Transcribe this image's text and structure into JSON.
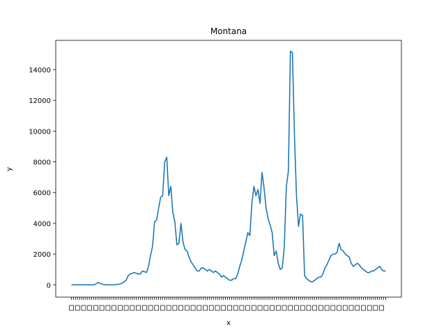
{
  "chart_data": {
    "type": "line",
    "title": "Montana",
    "xlabel": "x",
    "ylabel": "y",
    "grid": false,
    "ylim": [
      -800,
      15900
    ],
    "yticks": [
      0,
      2000,
      4000,
      6000,
      8000,
      10000,
      12000,
      14000
    ],
    "ytick_labels": [
      "0",
      "2000",
      "4000",
      "6000",
      "8000",
      "10000",
      "12000",
      "14000"
    ],
    "x_tick_labels_legible": false,
    "series": [
      {
        "color": "#1f77b4",
        "values": [
          0,
          0,
          0,
          0,
          0,
          0,
          0,
          0,
          0,
          0,
          0,
          0,
          50,
          150,
          100,
          50,
          20,
          0,
          0,
          0,
          0,
          0,
          20,
          30,
          60,
          100,
          200,
          300,
          600,
          700,
          750,
          800,
          750,
          700,
          700,
          900,
          850,
          800,
          1200,
          1900,
          2500,
          4100,
          4200,
          5000,
          5700,
          5800,
          8000,
          8300,
          5800,
          6400,
          4700,
          4100,
          2600,
          2700,
          4000,
          2800,
          2300,
          2200,
          1800,
          1500,
          1300,
          1100,
          900,
          900,
          1100,
          1100,
          1000,
          900,
          1000,
          900,
          800,
          900,
          800,
          700,
          500,
          600,
          500,
          400,
          300,
          300,
          400,
          400,
          700,
          1200,
          1600,
          2200,
          2800,
          3400,
          3200,
          5300,
          6400,
          5800,
          6200,
          5300,
          7300,
          6300,
          5000,
          4300,
          3900,
          3400,
          1900,
          2200,
          1400,
          1000,
          1100,
          2500,
          6400,
          7400,
          15200,
          15100,
          9700,
          5800,
          3800,
          4600,
          4500,
          600,
          400,
          300,
          200,
          200,
          300,
          400,
          500,
          500,
          700,
          1100,
          1300,
          1600,
          1900,
          2000,
          2000,
          2100,
          2700,
          2300,
          2200,
          2000,
          1900,
          1800,
          1400,
          1200,
          1300,
          1400,
          1300,
          1100,
          1000,
          900,
          800,
          800,
          900,
          900,
          1000,
          1100,
          1200,
          1000,
          900,
          900
        ]
      }
    ]
  }
}
